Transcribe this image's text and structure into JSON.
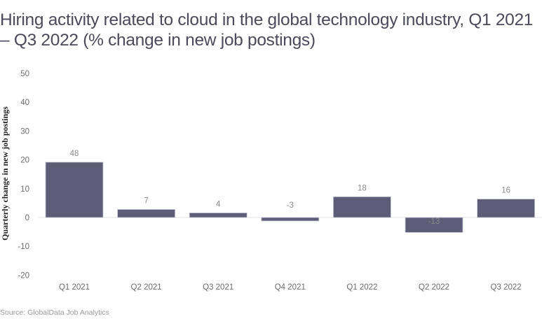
{
  "chart_data": {
    "type": "bar",
    "title": "Hiring activity related to cloud in the global technology industry, Q1 2021 – Q3 2022 (% change in new job postings)",
    "xlabel": "",
    "ylabel": "Quarterly change in new job postings",
    "categories": [
      "Q1 2021",
      "Q2 2021",
      "Q3 2021",
      "Q4 2021",
      "Q1 2022",
      "Q2 2022",
      "Q3 2022"
    ],
    "values": [
      48,
      7,
      4,
      -3,
      18,
      -13,
      16
    ],
    "data_labels": [
      "48",
      "7",
      "4",
      "-3",
      "18",
      "-13",
      "16"
    ],
    "ylim": [
      -20,
      50
    ],
    "yticks": [
      "50",
      "40",
      "30",
      "20",
      "10",
      "0",
      "-10",
      "-20"
    ],
    "grid": false,
    "bar_color": "#5e5d78",
    "source": "Source: GlobalData Job Analytics"
  }
}
